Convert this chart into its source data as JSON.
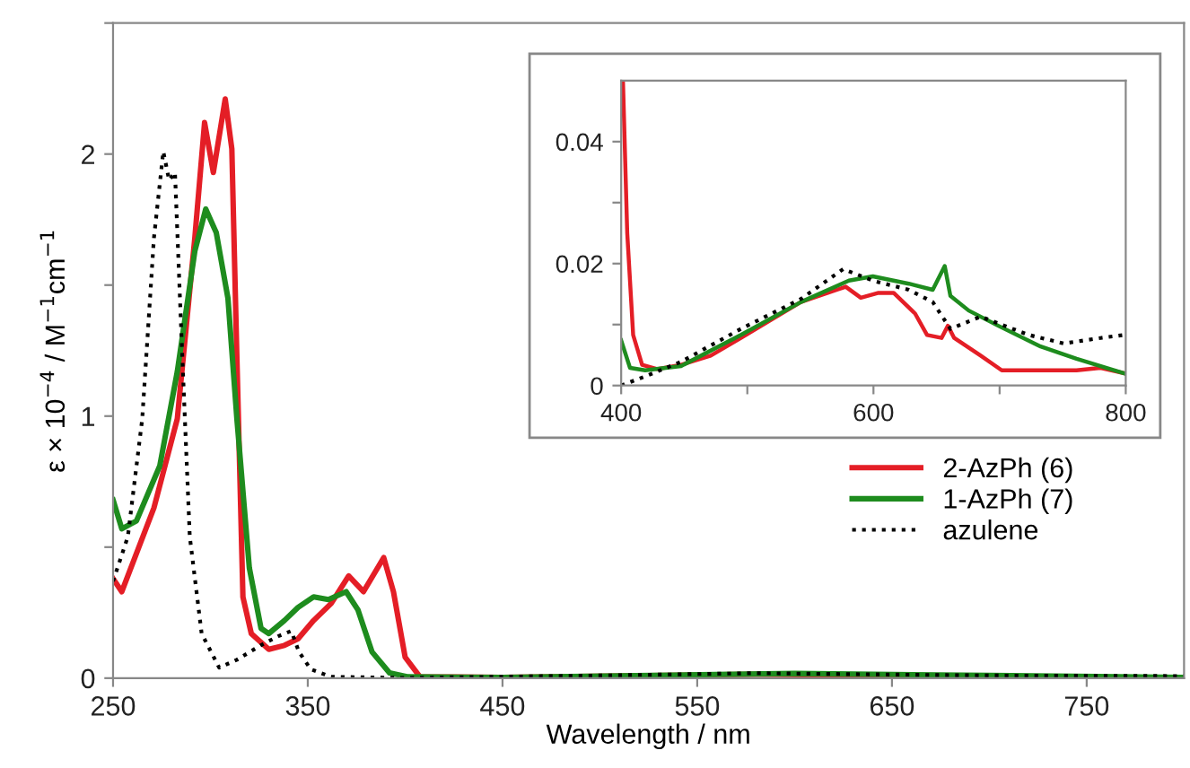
{
  "chart_data": [
    {
      "type": "line",
      "xlabel": "Wavelength / nm",
      "ylabel": "ε × 10$^{−4}$ / M$^{−1}$cm$^{−1}$",
      "xlim": [
        250,
        800
      ],
      "ylim": [
        0,
        2.5
      ],
      "xticks": [
        250,
        350,
        450,
        550,
        650,
        750
      ],
      "yticks": [
        0,
        {
          "value": 0.5,
          "label": null
        },
        1,
        {
          "value": 1.5,
          "label": null
        },
        2,
        {
          "value": 2.5,
          "label": null
        }
      ],
      "grid": false,
      "legend": "right",
      "marker": "none",
      "series": [
        {
          "name": "2-AzPh (6)",
          "color": "#e41e26",
          "line_style": "solid",
          "x": [
            250,
            254.5,
            271,
            283,
            292,
            297,
            301.5,
            307.6,
            311,
            313.6,
            316.7,
            321,
            330,
            338,
            345,
            353,
            362,
            371,
            378.6,
            389,
            394,
            400,
            407.6,
            450,
            580,
            650,
            720,
            800
          ],
          "values": [
            0.38,
            0.33,
            0.65,
            0.99,
            1.68,
            2.12,
            1.93,
            2.21,
            2.02,
            1.22,
            0.31,
            0.17,
            0.11,
            0.125,
            0.15,
            0.22,
            0.285,
            0.39,
            0.33,
            0.46,
            0.33,
            0.08,
            0.005,
            0.003,
            0.015,
            0.01,
            0.003,
            0.002
          ]
        },
        {
          "name": "1-AzPh (7)",
          "color": "#1e8c1e",
          "line_style": "solid",
          "x": [
            250,
            254.5,
            262,
            274,
            283,
            292,
            297.6,
            303,
            309,
            313.6,
            320,
            326,
            330,
            338,
            345,
            353,
            360.6,
            369.7,
            375.8,
            383,
            392,
            401.5,
            450,
            600,
            700,
            800
          ],
          "values": [
            0.68,
            0.57,
            0.6,
            0.81,
            1.17,
            1.63,
            1.79,
            1.7,
            1.45,
            0.99,
            0.42,
            0.19,
            0.17,
            0.22,
            0.27,
            0.31,
            0.3,
            0.33,
            0.26,
            0.1,
            0.02,
            0.005,
            0.003,
            0.018,
            0.01,
            0.003
          ]
        },
        {
          "name": "azulene",
          "color": "#000000",
          "line_style": "dotted",
          "x": [
            250,
            257.6,
            265,
            271,
            275.8,
            278.8,
            281.8,
            285,
            289.4,
            295.5,
            304.5,
            313.6,
            325.8,
            334.8,
            341.5,
            345.5,
            351.5,
            362,
            400,
            500,
            580,
            700,
            800
          ],
          "values": [
            0.37,
            0.54,
            0.99,
            1.68,
            2.01,
            1.9,
            1.93,
            1.33,
            0.54,
            0.17,
            0.04,
            0.07,
            0.125,
            0.16,
            0.18,
            0.1,
            0.034,
            0.005,
            0.001,
            0.01,
            0.019,
            0.01,
            0.008
          ]
        }
      ]
    },
    {
      "type": "line",
      "xlim": [
        400,
        800
      ],
      "ylim": [
        0,
        0.05
      ],
      "xticks": [
        400,
        {
          "value": 500,
          "label": null
        },
        600,
        {
          "value": 700,
          "label": null
        },
        800
      ],
      "yticks": [
        0,
        {
          "value": 0.01,
          "label": null
        },
        0.02,
        {
          "value": 0.03,
          "label": null
        },
        0.04
      ],
      "grid": false,
      "legend": false,
      "marker": "none",
      "series": [
        {
          "color": "#e41e26",
          "line_style": "solid",
          "x": [
            401.4,
            404.8,
            409.5,
            416.6,
            428.5,
            447.5,
            471,
            495,
            519,
            542.5,
            571,
            578,
            590,
            604,
            616,
            633,
            642.5,
            654,
            659,
            664,
            685,
            701.7,
            732.5,
            761,
            780,
            799
          ],
          "values": [
            0.05,
            0.025,
            0.0083,
            0.0034,
            0.0027,
            0.0034,
            0.0049,
            0.0078,
            0.0108,
            0.0137,
            0.0157,
            0.0162,
            0.0144,
            0.0152,
            0.0152,
            0.0118,
            0.0083,
            0.0078,
            0.0098,
            0.0078,
            0.0049,
            0.0025,
            0.0025,
            0.0025,
            0.0029,
            0.002
          ]
        },
        {
          "color": "#1e8c1e",
          "line_style": "solid",
          "x": [
            400,
            407,
            419,
            447.5,
            495,
            542.5,
            580.5,
            599.5,
            628,
            647,
            656.5,
            661,
            675.5,
            699,
            732.5,
            761,
            799
          ],
          "values": [
            0.0074,
            0.0029,
            0.0025,
            0.0032,
            0.0083,
            0.0137,
            0.0172,
            0.0179,
            0.0167,
            0.0157,
            0.0196,
            0.0147,
            0.0123,
            0.0098,
            0.0064,
            0.0044,
            0.002
          ]
        },
        {
          "color": "#000000",
          "line_style": "dotted",
          "x": [
            400,
            419,
            447.5,
            495,
            542.5,
            576,
            599.5,
            628,
            647,
            661,
            685,
            723,
            751,
            780,
            799
          ],
          "values": [
            0,
            0.0015,
            0.0039,
            0.0093,
            0.0142,
            0.0191,
            0.0172,
            0.0157,
            0.0137,
            0.0093,
            0.0113,
            0.0083,
            0.0069,
            0.0078,
            0.0083
          ]
        }
      ]
    }
  ]
}
